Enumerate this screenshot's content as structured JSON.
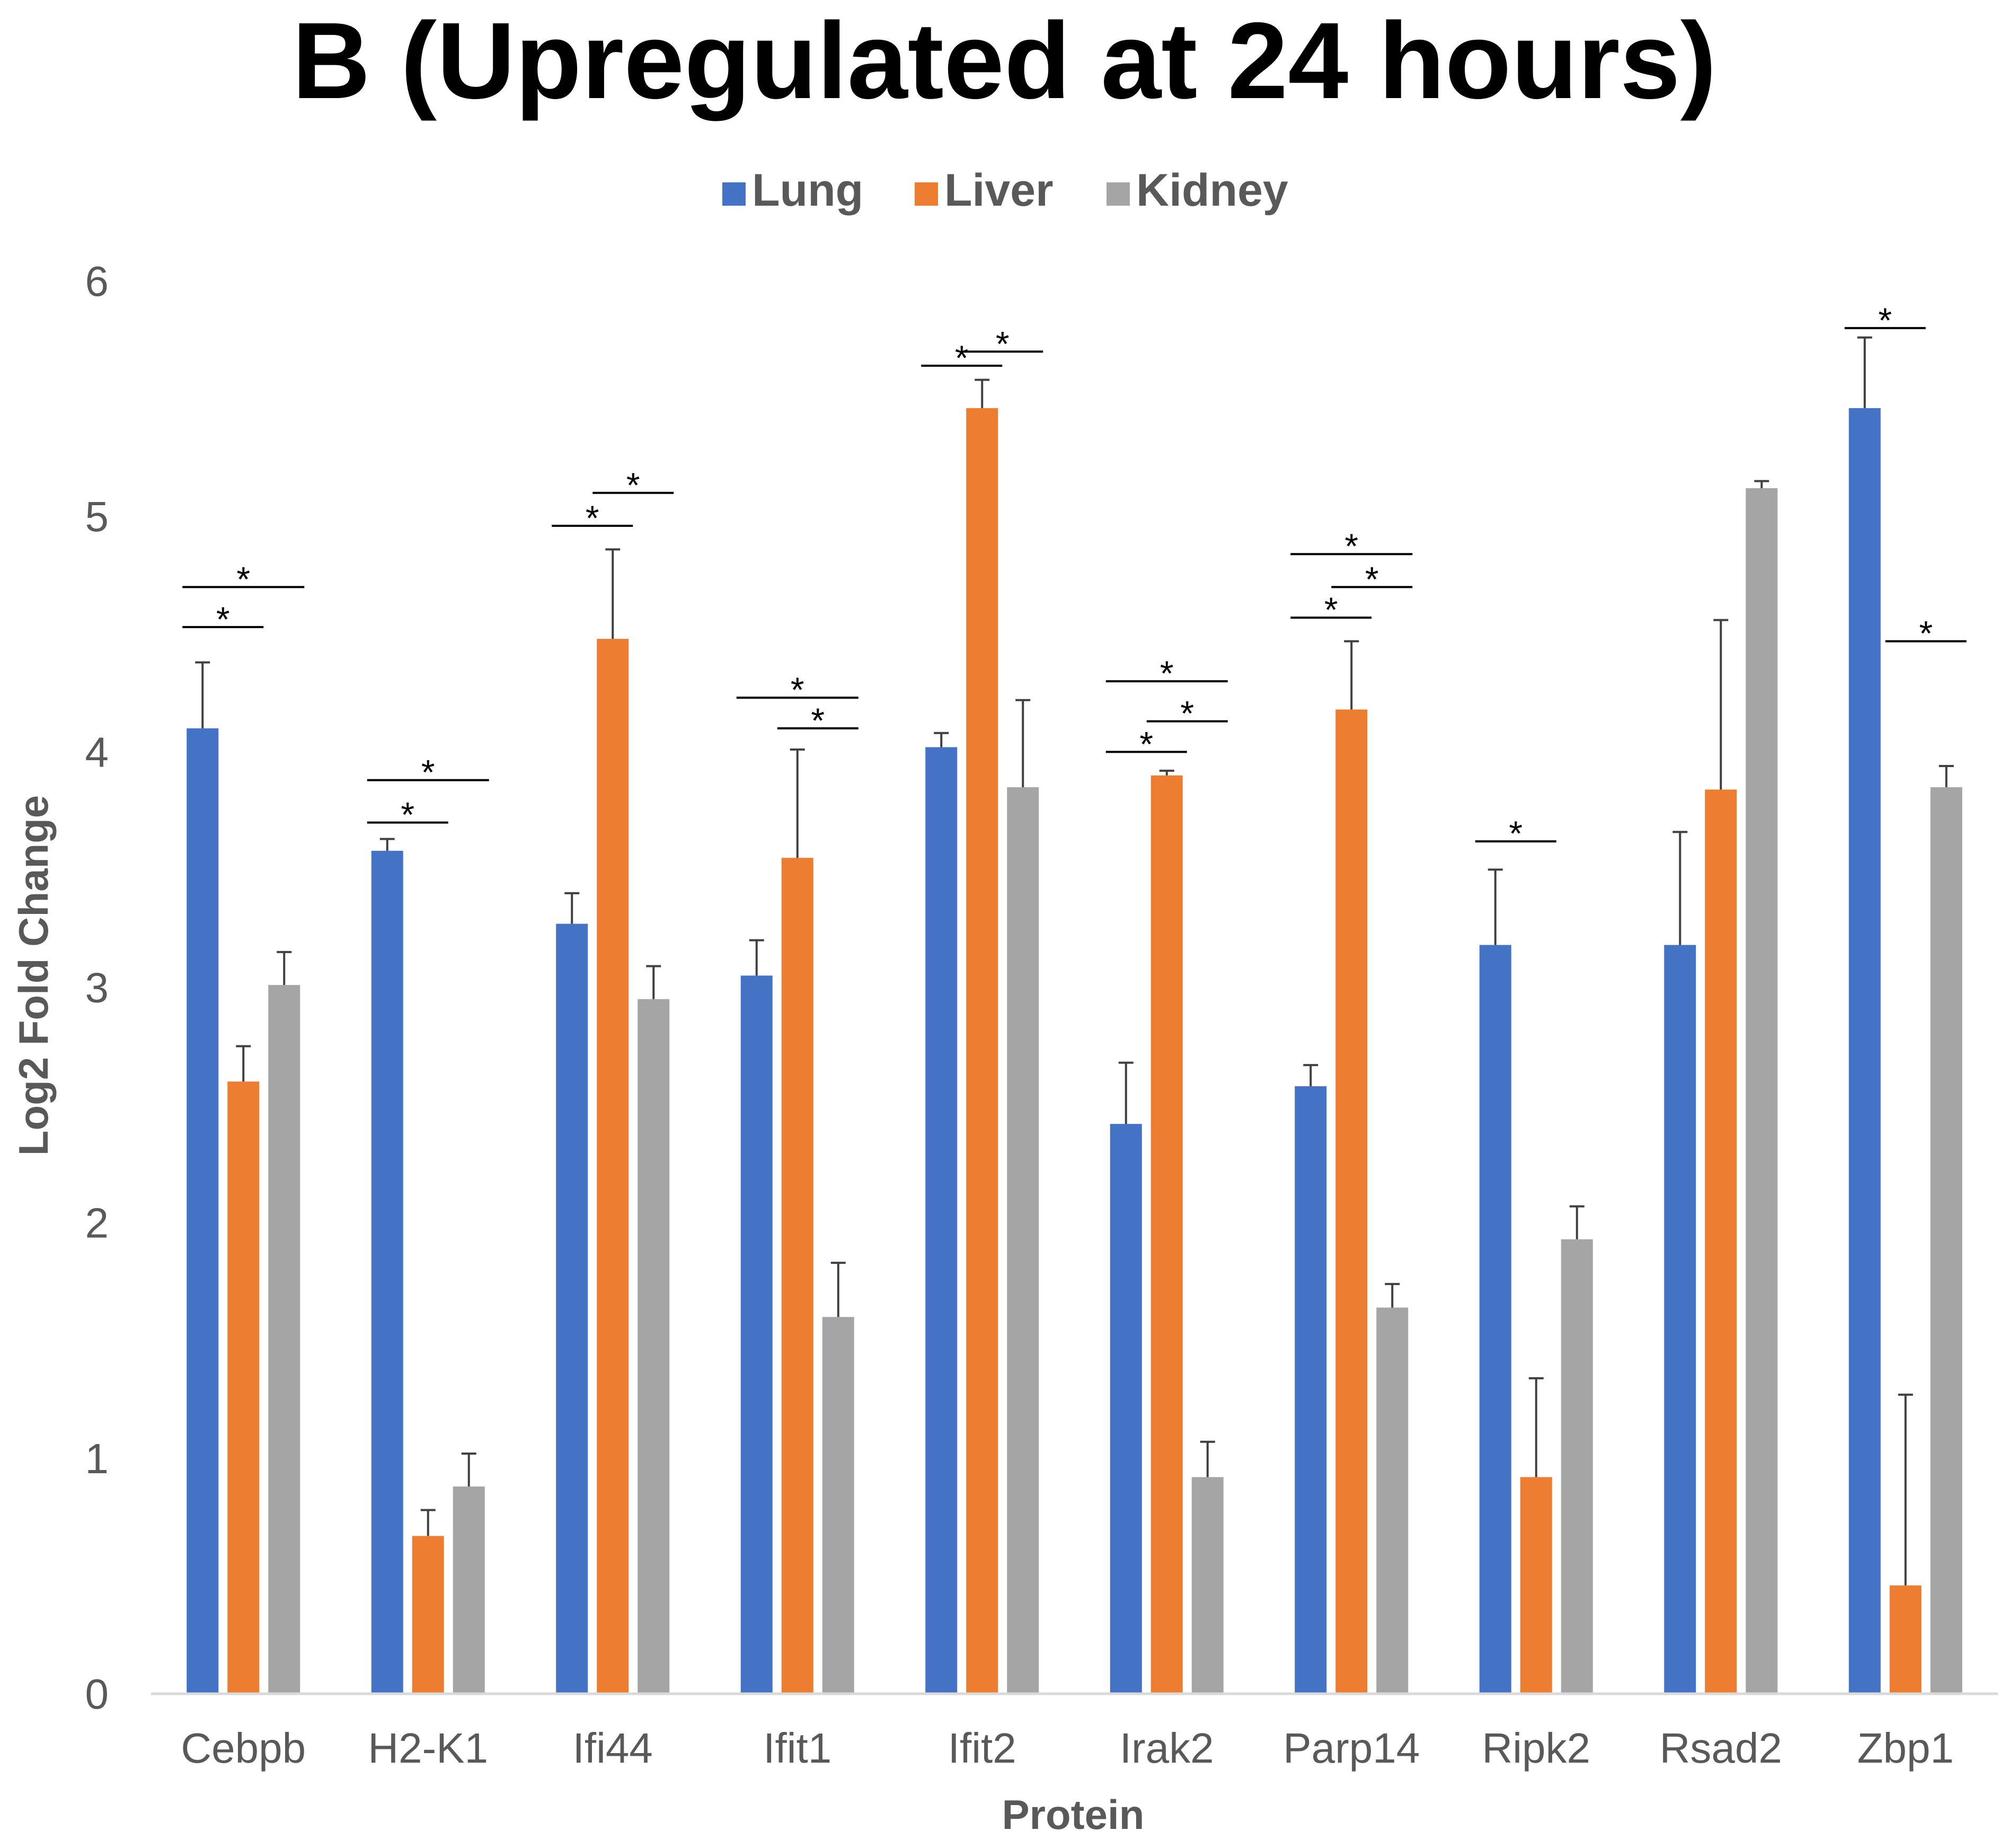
{
  "chart_data": {
    "type": "bar",
    "title": "B (Upregulated at 24 hours)",
    "xlabel": "Protein",
    "ylabel": "Log2 Fold Change",
    "ylim": [
      0,
      6
    ],
    "yticks": [
      "0",
      "1",
      "2",
      "3",
      "4",
      "5",
      "6"
    ],
    "grid": false,
    "legend_position": "top-center",
    "categories": [
      "Cebpb",
      "H2-K1",
      "Ifi44",
      "Ifit1",
      "Ifit2",
      "Irak2",
      "Parp14",
      "Ripk2",
      "Rsad2",
      "Zbp1"
    ],
    "series": [
      {
        "name": "Lung",
        "color": "#4472C4",
        "values": [
          4.1,
          3.58,
          3.27,
          3.05,
          4.02,
          2.42,
          2.58,
          3.18,
          3.18,
          5.46
        ],
        "error_upper": [
          4.38,
          3.63,
          3.4,
          3.2,
          4.08,
          2.68,
          2.67,
          3.5,
          3.66,
          5.76
        ]
      },
      {
        "name": "Liver",
        "color": "#ED7D31",
        "values": [
          2.6,
          0.67,
          4.48,
          3.55,
          5.46,
          3.9,
          4.18,
          0.92,
          3.84,
          0.46
        ],
        "error_upper": [
          2.75,
          0.78,
          4.86,
          4.01,
          5.58,
          3.92,
          4.47,
          1.34,
          4.56,
          1.27
        ]
      },
      {
        "name": "Kidney",
        "color": "#A5A5A5",
        "values": [
          3.01,
          0.88,
          2.95,
          1.6,
          3.85,
          0.92,
          1.64,
          1.93,
          5.12,
          3.85
        ],
        "error_upper": [
          3.15,
          1.02,
          3.09,
          1.83,
          4.22,
          1.07,
          1.74,
          2.07,
          5.15,
          3.94
        ]
      }
    ],
    "significance_marks": [
      {
        "category": "Cebpb",
        "from": "Lung",
        "to": "Liver",
        "level": 4.53,
        "label": "*"
      },
      {
        "category": "Cebpb",
        "from": "Lung",
        "to": "Kidney",
        "level": 4.7,
        "label": "*"
      },
      {
        "category": "H2-K1",
        "from": "Lung",
        "to": "Liver",
        "level": 3.7,
        "label": "*"
      },
      {
        "category": "H2-K1",
        "from": "Lung",
        "to": "Kidney",
        "level": 3.88,
        "label": "*"
      },
      {
        "category": "Ifi44",
        "from": "Lung",
        "to": "Liver",
        "level": 4.96,
        "label": "*"
      },
      {
        "category": "Ifi44",
        "from": "Liver",
        "to": "Kidney",
        "level": 5.1,
        "label": "*"
      },
      {
        "category": "Ifit1",
        "from": "Liver",
        "to": "Kidney",
        "level": 4.1,
        "label": "*"
      },
      {
        "category": "Ifit1",
        "from": "Lung",
        "to": "Kidney",
        "level": 4.23,
        "label": "*"
      },
      {
        "category": "Ifit2",
        "from": "Lung",
        "to": "Liver",
        "level": 5.64,
        "label": "*"
      },
      {
        "category": "Ifit2",
        "from": "Liver",
        "to": "Kidney",
        "level": 5.7,
        "label": "*"
      },
      {
        "category": "Irak2",
        "from": "Lung",
        "to": "Liver",
        "level": 4.0,
        "label": "*"
      },
      {
        "category": "Irak2",
        "from": "Liver",
        "to": "Kidney",
        "level": 4.13,
        "label": "*"
      },
      {
        "category": "Irak2",
        "from": "Lung",
        "to": "Kidney",
        "level": 4.3,
        "label": "*"
      },
      {
        "category": "Parp14",
        "from": "Lung",
        "to": "Liver",
        "level": 4.57,
        "label": "*"
      },
      {
        "category": "Parp14",
        "from": "Liver",
        "to": "Kidney",
        "level": 4.7,
        "label": "*"
      },
      {
        "category": "Parp14",
        "from": "Lung",
        "to": "Kidney",
        "level": 4.84,
        "label": "*"
      },
      {
        "category": "Ripk2",
        "from": "Lung",
        "to": "Liver",
        "level": 3.62,
        "label": "*"
      },
      {
        "category": "Zbp1",
        "from": "Lung",
        "to": "Liver",
        "level": 5.8,
        "label": "*"
      },
      {
        "category": "Zbp1",
        "from": "Liver",
        "to": "Kidney",
        "level": 4.47,
        "label": "*"
      }
    ]
  }
}
